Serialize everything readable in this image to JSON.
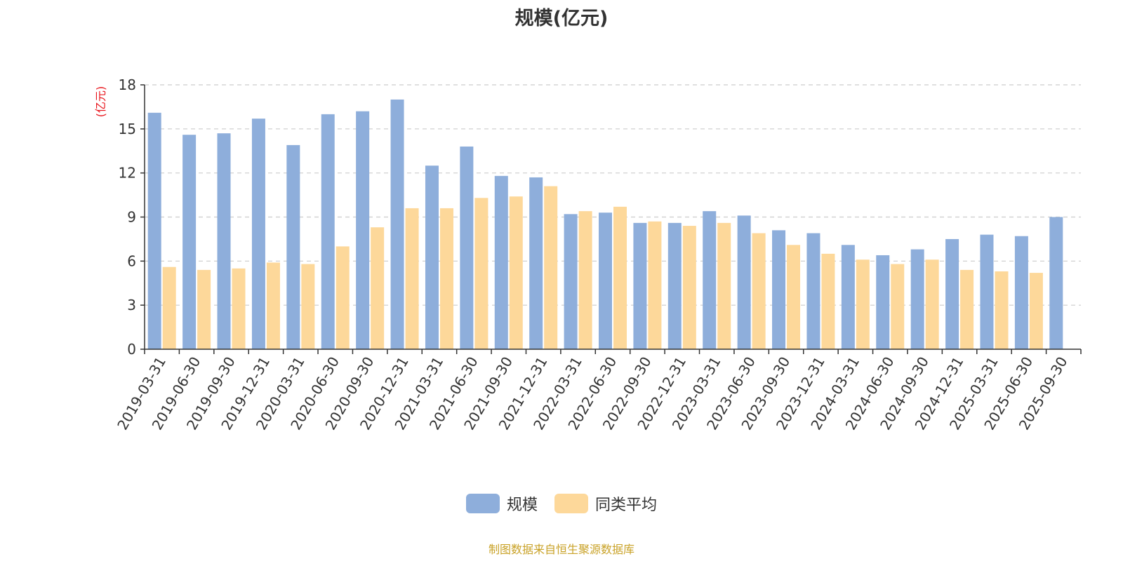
{
  "title": "规模(亿元)",
  "footer": "制图数据来自恒生聚源数据库",
  "colors": {
    "series1": "#8eaedb",
    "series2": "#fdd89a",
    "axis": "#333333",
    "grid": "#cccccc",
    "ylabel": "#e8141b",
    "footer": "#c9a227"
  },
  "chart_data": {
    "type": "bar",
    "title": "规模(亿元)",
    "ylabel": "(亿元)",
    "xlabel": "",
    "ylim": [
      0,
      18
    ],
    "yticks": [
      0,
      3,
      6,
      9,
      12,
      15,
      18
    ],
    "grid": true,
    "legend_position": "bottom",
    "categories": [
      "2019-03-31",
      "2019-06-30",
      "2019-09-30",
      "2019-12-31",
      "2020-03-31",
      "2020-06-30",
      "2020-09-30",
      "2020-12-31",
      "2021-03-31",
      "2021-06-30",
      "2021-09-30",
      "2021-12-31",
      "2022-03-31",
      "2022-06-30",
      "2022-09-30",
      "2022-12-31",
      "2023-03-31",
      "2023-06-30",
      "2023-09-30",
      "2023-12-31",
      "2024-03-31",
      "2024-06-30",
      "2024-09-30",
      "2024-12-31",
      "2025-03-31",
      "2025-06-30",
      "2025-09-30"
    ],
    "series": [
      {
        "name": "规模",
        "values": [
          16.1,
          14.6,
          14.7,
          15.7,
          13.9,
          16.0,
          16.2,
          17.0,
          12.5,
          13.8,
          11.8,
          11.7,
          9.2,
          9.3,
          8.6,
          8.6,
          9.4,
          9.1,
          8.1,
          7.9,
          7.1,
          6.4,
          6.8,
          7.5,
          7.8,
          7.7,
          9.0
        ]
      },
      {
        "name": "同类平均",
        "values": [
          5.6,
          5.4,
          5.5,
          5.9,
          5.8,
          7.0,
          8.3,
          9.6,
          9.6,
          10.3,
          10.4,
          11.1,
          9.4,
          9.7,
          8.7,
          8.4,
          8.6,
          7.9,
          7.1,
          6.5,
          6.1,
          5.8,
          6.1,
          5.4,
          5.3,
          5.2,
          null
        ]
      }
    ]
  }
}
